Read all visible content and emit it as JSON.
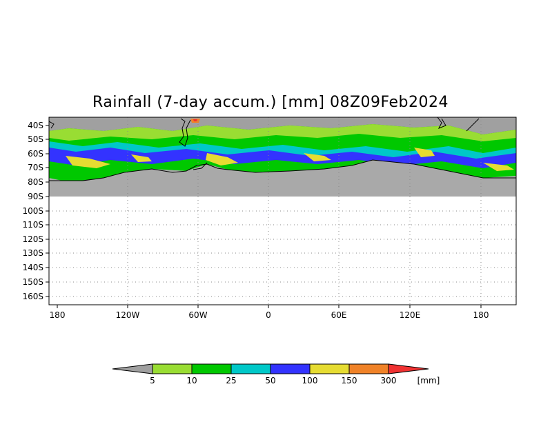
{
  "title": "Rainfall (7-day accum.) [mm] 08Z09Feb2024",
  "lat_labels": [
    "40S",
    "50S",
    "60S",
    "70S",
    "80S",
    "90S",
    "100S",
    "110S",
    "120S",
    "130S",
    "140S",
    "150S",
    "160S"
  ],
  "lon_labels": [
    "180",
    "120W",
    "60W",
    "0",
    "60E",
    "120E",
    "180"
  ],
  "colorbar": {
    "thresholds": [
      "5",
      "10",
      "25",
      "50",
      "100",
      "150",
      "300"
    ],
    "unit": "[mm]",
    "colors": {
      "below": "#a0a0a0",
      "c1": "#99dd33",
      "c2": "#00c800",
      "c3": "#00c8c8",
      "c4": "#3333ff",
      "c5": "#e6dc32",
      "c6": "#f08228",
      "above": "#f03232"
    }
  },
  "map_colors": {
    "land_mask": "#a9a9a9",
    "coast": "#000000",
    "grid": "#888888"
  }
}
